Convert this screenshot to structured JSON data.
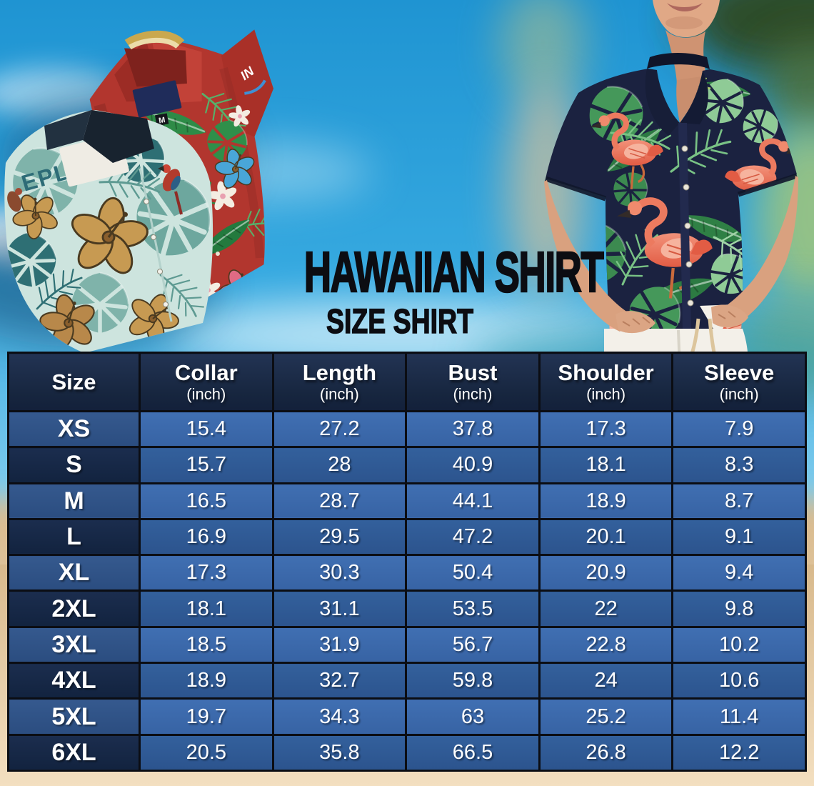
{
  "hero": {
    "title": "HAWAIIAN SHIRT",
    "subtitle": "SIZE SHIRT",
    "photo_texts": {
      "red_shirt_size_tag": "M",
      "red_shirt_sleeve_logo": "IN",
      "teal_shirt_print_text": "EPL"
    }
  },
  "chart_data": {
    "type": "table",
    "title": "HAWAIIAN SHIRT",
    "subtitle": "SIZE SHIRT",
    "unit_note": "(inch)",
    "columns": [
      {
        "label": "Size",
        "unit": ""
      },
      {
        "label": "Collar",
        "unit": "(inch)"
      },
      {
        "label": "Length",
        "unit": "(inch)"
      },
      {
        "label": "Bust",
        "unit": "(inch)"
      },
      {
        "label": "Shoulder",
        "unit": "(inch)"
      },
      {
        "label": "Sleeve",
        "unit": "(inch)"
      }
    ],
    "rows": [
      {
        "size": "XS",
        "values": [
          "15.4",
          "27.2",
          "37.8",
          "17.3",
          "7.9"
        ]
      },
      {
        "size": "S",
        "values": [
          "15.7",
          "28",
          "40.9",
          "18.1",
          "8.3"
        ]
      },
      {
        "size": "M",
        "values": [
          "16.5",
          "28.7",
          "44.1",
          "18.9",
          "8.7"
        ]
      },
      {
        "size": "L",
        "values": [
          "16.9",
          "29.5",
          "47.2",
          "20.1",
          "9.1"
        ]
      },
      {
        "size": "XL",
        "values": [
          "17.3",
          "30.3",
          "50.4",
          "20.9",
          "9.4"
        ]
      },
      {
        "size": "2XL",
        "values": [
          "18.1",
          "31.1",
          "53.5",
          "22",
          "9.8"
        ]
      },
      {
        "size": "3XL",
        "values": [
          "18.5",
          "31.9",
          "56.7",
          "22.8",
          "10.2"
        ]
      },
      {
        "size": "4XL",
        "values": [
          "18.9",
          "32.7",
          "59.8",
          "24",
          "10.6"
        ]
      },
      {
        "size": "5XL",
        "values": [
          "19.7",
          "34.3",
          "63",
          "25.2",
          "11.4"
        ]
      },
      {
        "size": "6XL",
        "values": [
          "20.5",
          "35.8",
          "66.5",
          "26.8",
          "12.2"
        ]
      }
    ]
  },
  "colors": {
    "header_bg": "#17263f",
    "row_light_value_bg": "#3b69ad",
    "row_dark_value_bg": "#2f5a93",
    "row_light_size_bg": "#2d5286",
    "row_dark_size_bg": "#152844",
    "table_border": "#0b0d13",
    "table_text": "#ffffff",
    "title_text": "#0c0d12",
    "sky_blue": "#2a9fd9",
    "sand": "#ecd2ab",
    "shirt_navy": "#1b2240",
    "flamingo_coral": "#ec7a5f",
    "leaf_green": "#45985a"
  }
}
